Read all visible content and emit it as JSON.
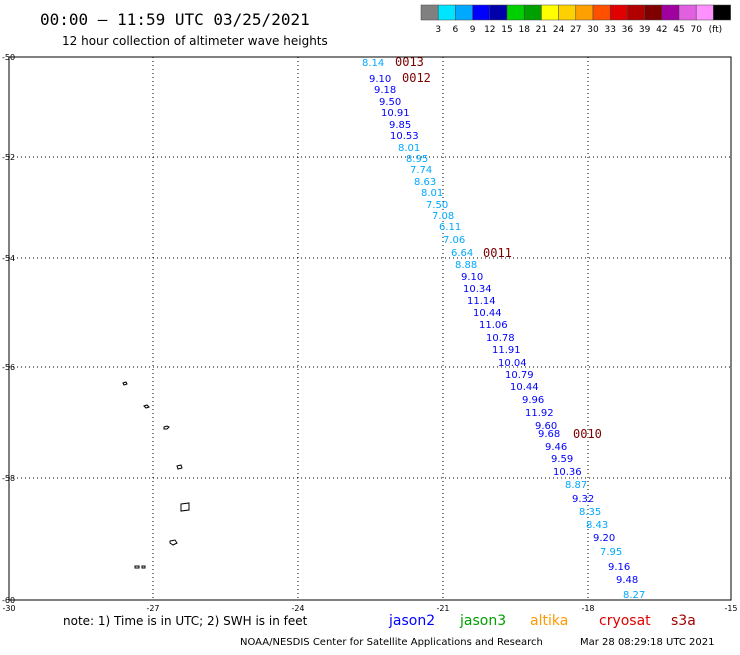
{
  "header": {
    "title": "00:00 – 11:59 UTC 03/25/2021",
    "subtitle": "12 hour collection of altimeter wave heights"
  },
  "legend": {
    "colors": [
      "#808080",
      "#00e5ff",
      "#00a8ff",
      "#0000ff",
      "#0000aa",
      "#00d000",
      "#00a000",
      "#ffff00",
      "#ffd000",
      "#ffa000",
      "#ff5000",
      "#e00000",
      "#b00000",
      "#800000",
      "#a000a0",
      "#e060e0",
      "#ff90ff",
      "#000000"
    ],
    "labels": [
      "3",
      "6",
      "9",
      "12",
      "15",
      "18",
      "21",
      "24",
      "27",
      "30",
      "33",
      "36",
      "39",
      "42",
      "45",
      "70"
    ],
    "unit": "(ft)"
  },
  "map": {
    "lat_ticks": [
      "-50",
      "-52",
      "-54",
      "-56",
      "-58",
      "-60"
    ],
    "lon_ticks": [
      "-30",
      "-27",
      "-24",
      "-21",
      "-18",
      "-15"
    ],
    "track": [
      {
        "v": "8.14",
        "c": "#00a8ff"
      },
      {
        "v": "9.10",
        "c": "#0000ff"
      },
      {
        "v": "9.18",
        "c": "#0000ff"
      },
      {
        "v": "9.50",
        "c": "#0000ff"
      },
      {
        "v": "10.91",
        "c": "#0000ff"
      },
      {
        "v": "9.85",
        "c": "#0000ff"
      },
      {
        "v": "10.53",
        "c": "#0000ff"
      },
      {
        "v": "8.01",
        "c": "#00a8ff"
      },
      {
        "v": "8.95",
        "c": "#00a8ff"
      },
      {
        "v": "7.74",
        "c": "#00a8ff"
      },
      {
        "v": "8.63",
        "c": "#00a8ff"
      },
      {
        "v": "8.01",
        "c": "#00a8ff"
      },
      {
        "v": "7.50",
        "c": "#00a8ff"
      },
      {
        "v": "7.08",
        "c": "#00a8ff"
      },
      {
        "v": "6.11",
        "c": "#00a8ff"
      },
      {
        "v": "7.06",
        "c": "#00a8ff"
      },
      {
        "v": "6.64",
        "c": "#00a8ff"
      },
      {
        "v": "8.88",
        "c": "#00a8ff"
      },
      {
        "v": "9.10",
        "c": "#0000ff"
      },
      {
        "v": "10.34",
        "c": "#0000ff"
      },
      {
        "v": "11.14",
        "c": "#0000ff"
      },
      {
        "v": "10.44",
        "c": "#0000ff"
      },
      {
        "v": "11.06",
        "c": "#0000ff"
      },
      {
        "v": "10.78",
        "c": "#0000ff"
      },
      {
        "v": "11.91",
        "c": "#0000ff"
      },
      {
        "v": "10.04",
        "c": "#0000ff"
      },
      {
        "v": "10.79",
        "c": "#0000ff"
      },
      {
        "v": "10.44",
        "c": "#0000ff"
      },
      {
        "v": "9.96",
        "c": "#0000ff"
      },
      {
        "v": "11.92",
        "c": "#0000ff"
      },
      {
        "v": "9.60",
        "c": "#0000ff"
      },
      {
        "v": "9.68",
        "c": "#0000ff"
      },
      {
        "v": "9.46",
        "c": "#0000ff"
      },
      {
        "v": "9.59",
        "c": "#0000ff"
      },
      {
        "v": "10.36",
        "c": "#0000ff"
      },
      {
        "v": "8.87",
        "c": "#00a8ff"
      },
      {
        "v": "9.32",
        "c": "#0000ff"
      },
      {
        "v": "8.35",
        "c": "#00a8ff"
      },
      {
        "v": "8.43",
        "c": "#00a8ff"
      },
      {
        "v": "9.20",
        "c": "#0000ff"
      },
      {
        "v": "7.95",
        "c": "#00a8ff"
      },
      {
        "v": "9.16",
        "c": "#0000ff"
      },
      {
        "v": "9.48",
        "c": "#0000ff"
      },
      {
        "v": "8.27",
        "c": "#00a8ff"
      }
    ],
    "pass_labels": [
      "0013",
      "0012",
      "0011",
      "0010"
    ]
  },
  "footer": {
    "note": "note: 1) Time is in UTC; 2) SWH is in feet",
    "satellites": [
      {
        "name": "jason2",
        "color": "#0000ff"
      },
      {
        "name": "jason3",
        "color": "#00a000"
      },
      {
        "name": "altika",
        "color": "#ff9900"
      },
      {
        "name": "cryosat",
        "color": "#e00000"
      },
      {
        "name": "s3a",
        "color": "#a00000"
      }
    ],
    "credit": "NOAA/NESDIS Center for Satellite Applications and Research",
    "timestamp": "Mar 28 08:29:18 UTC 2021"
  }
}
